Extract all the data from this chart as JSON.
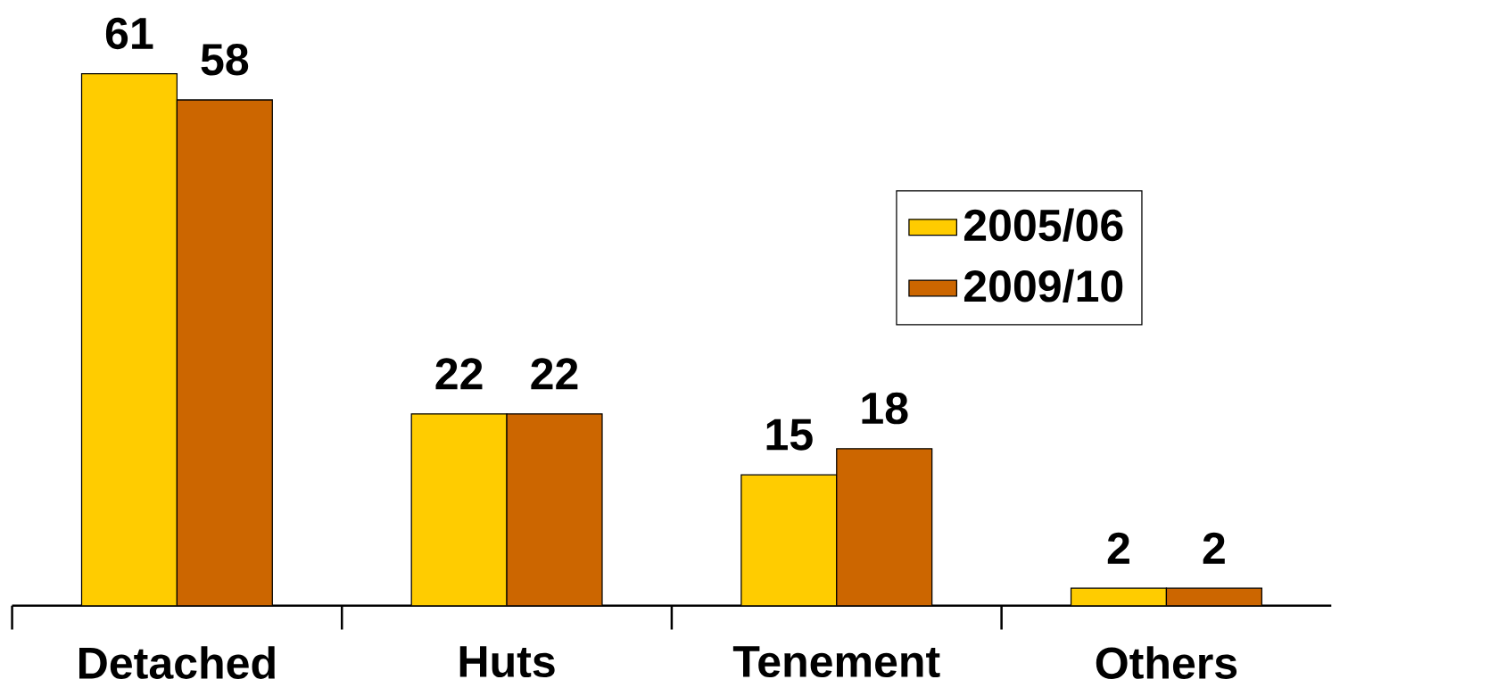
{
  "chart_data": {
    "type": "bar",
    "categories": [
      "Detached",
      "Huts",
      "Tenement",
      "Others"
    ],
    "series": [
      {
        "name": "2005/06",
        "color": "#ffcc00",
        "values": [
          61,
          22,
          15,
          2
        ]
      },
      {
        "name": "2009/10",
        "color": "#cc6600",
        "values": [
          58,
          22,
          18,
          2
        ]
      }
    ],
    "data_labels": true,
    "legend": "right"
  }
}
